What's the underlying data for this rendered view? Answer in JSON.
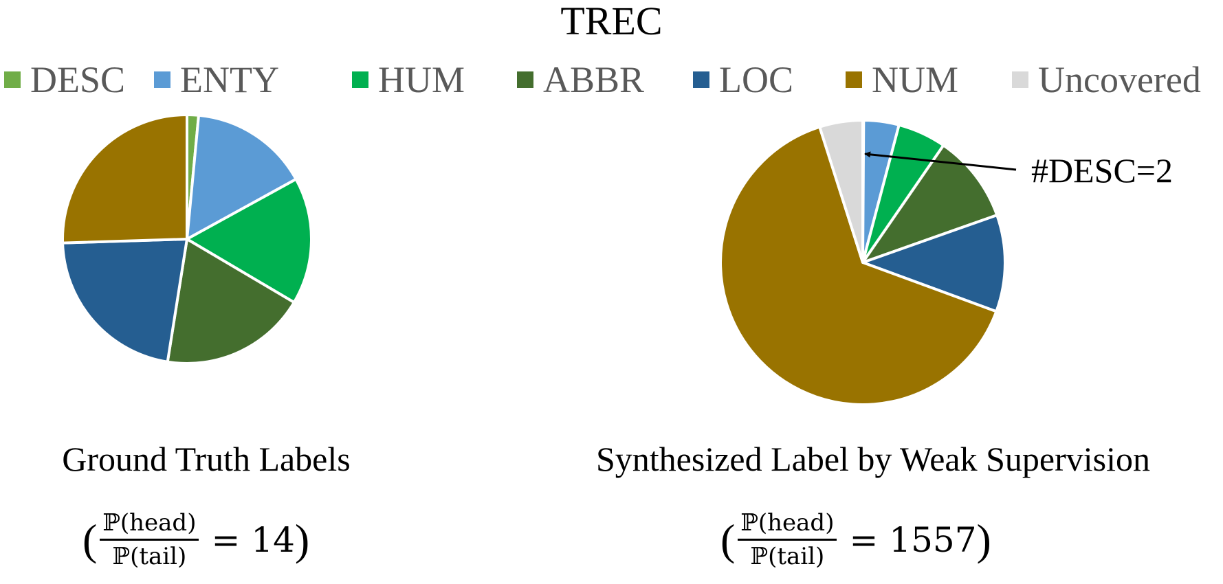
{
  "title": "TREC",
  "legend": [
    {
      "label": "DESC",
      "color": "#70AD47"
    },
    {
      "label": "ENTY",
      "color": "#5B9BD5"
    },
    {
      "label": "HUM",
      "color": "#00B050"
    },
    {
      "label": "ABBR",
      "color": "#446E2E"
    },
    {
      "label": "LOC",
      "color": "#255E91"
    },
    {
      "label": "NUM",
      "color": "#997300"
    },
    {
      "label": "Uncovered",
      "color": "#D9D9D9"
    }
  ],
  "chart_data": [
    {
      "type": "pie",
      "title": "Ground Truth Labels",
      "ratio": {
        "numerator": "ℙ(head)",
        "denominator": "ℙ(tail)",
        "value": "= 14"
      },
      "categories": [
        "DESC",
        "ENTY",
        "HUM",
        "ABBR",
        "LOC",
        "NUM"
      ],
      "values": [
        1.5,
        15.5,
        16.5,
        19.0,
        22.0,
        25.5
      ]
    },
    {
      "type": "pie",
      "title": "Synthesized Label by Weak Supervision",
      "ratio": {
        "numerator": "ℙ(head)",
        "denominator": "ℙ(tail)",
        "value": "= 1557"
      },
      "categories": [
        "DESC",
        "ENTY",
        "HUM",
        "ABBR",
        "LOC",
        "NUM",
        "Uncovered"
      ],
      "values": [
        0.1,
        4.0,
        5.5,
        10.0,
        11.0,
        64.5,
        4.9
      ],
      "annotation": {
        "text": "#DESC=2",
        "target": "DESC"
      }
    }
  ]
}
